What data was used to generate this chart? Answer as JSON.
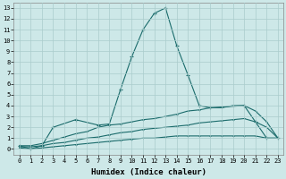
{
  "bg_color": "#cde8e8",
  "grid_color": "#aacccc",
  "line_color": "#1a6b6b",
  "xlim": [
    -0.5,
    23.5
  ],
  "ylim": [
    -0.5,
    13.5
  ],
  "yticks": [
    0,
    1,
    2,
    3,
    4,
    5,
    6,
    7,
    8,
    9,
    10,
    11,
    12,
    13
  ],
  "xtick_labels": [
    "0",
    "1",
    "2",
    "3",
    "4",
    "5",
    "6",
    "7",
    "8",
    "9",
    "10",
    "11",
    "12",
    "13",
    "14",
    "15",
    "16",
    "17",
    "18",
    "19",
    "20",
    "21",
    "22",
    "23"
  ],
  "xlabel": "Humidex (Indice chaleur)",
  "font_size": 6.5,
  "line_main_x": [
    0,
    1,
    2,
    3,
    5,
    7,
    8,
    9,
    10,
    11,
    12,
    13,
    14,
    15,
    16,
    17,
    20,
    21,
    22,
    23
  ],
  "line_main_y": [
    0.3,
    0.0,
    0.3,
    2.0,
    2.7,
    2.2,
    2.3,
    5.5,
    8.5,
    11.0,
    12.5,
    13.0,
    9.5,
    6.8,
    4.0,
    3.8,
    4.0,
    2.5,
    1.0,
    1.0
  ],
  "line_upper_x": [
    0,
    1,
    2,
    3,
    4,
    5,
    6,
    7,
    8,
    9,
    10,
    11,
    12,
    13,
    14,
    15,
    16,
    17,
    18,
    19,
    20,
    21,
    22,
    23
  ],
  "line_upper_y": [
    0.3,
    0.3,
    0.5,
    0.8,
    1.1,
    1.4,
    1.6,
    2.0,
    2.2,
    2.3,
    2.5,
    2.7,
    2.8,
    3.0,
    3.2,
    3.5,
    3.6,
    3.8,
    3.8,
    4.0,
    4.0,
    3.5,
    2.5,
    1.0
  ],
  "line_mid_x": [
    0,
    1,
    2,
    3,
    4,
    5,
    6,
    7,
    8,
    9,
    10,
    11,
    12,
    13,
    14,
    15,
    16,
    17,
    18,
    19,
    20,
    21,
    22,
    23
  ],
  "line_mid_y": [
    0.2,
    0.2,
    0.3,
    0.5,
    0.6,
    0.8,
    1.0,
    1.1,
    1.3,
    1.5,
    1.6,
    1.8,
    1.9,
    2.0,
    2.1,
    2.2,
    2.4,
    2.5,
    2.6,
    2.7,
    2.8,
    2.5,
    2.0,
    1.0
  ],
  "line_low_x": [
    0,
    1,
    2,
    3,
    4,
    5,
    6,
    7,
    8,
    9,
    10,
    11,
    12,
    13,
    14,
    15,
    16,
    17,
    18,
    19,
    20,
    21,
    22,
    23
  ],
  "line_low_y": [
    0.1,
    0.0,
    0.1,
    0.2,
    0.3,
    0.4,
    0.5,
    0.6,
    0.7,
    0.8,
    0.9,
    1.0,
    1.0,
    1.1,
    1.2,
    1.2,
    1.2,
    1.2,
    1.2,
    1.2,
    1.2,
    1.2,
    1.0,
    1.0
  ]
}
